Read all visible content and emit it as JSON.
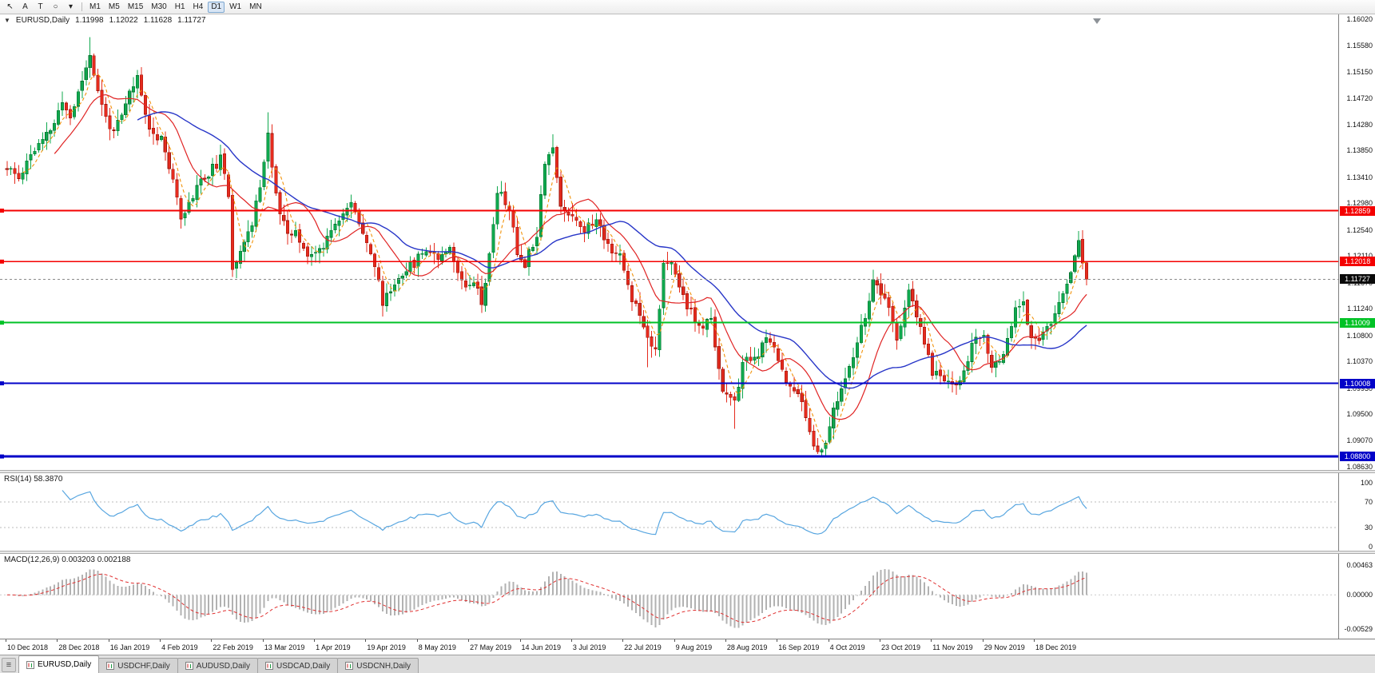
{
  "colors": {
    "bull_body": "#0fa84e",
    "bull_edge": "#05702e",
    "bear_body": "#e52b1e",
    "bear_edge": "#9c150c",
    "ma_fast": "#f2930a",
    "ma_mid": "#e02424",
    "ma_slow": "#2836c8",
    "hline_red": "#f40000",
    "hline_green": "#00c226",
    "hline_blue": "#0202c8",
    "current_line": "#8a8a8a",
    "current_box": "#0a0a0a",
    "rsi_line": "#58a6e0",
    "macd_hist": "#b2b2b2",
    "macd_signal": "#e03030"
  },
  "toolbar": {
    "tools": [
      {
        "name": "cursor-icon",
        "glyph": "↖"
      },
      {
        "name": "arrow-tool-a",
        "glyph": "A"
      },
      {
        "name": "text-tool-t",
        "glyph": "T"
      },
      {
        "name": "shapes-tool-icon",
        "glyph": "○"
      },
      {
        "name": "chevron-down-icon",
        "glyph": "▾"
      }
    ],
    "timeframes": [
      "M1",
      "M5",
      "M15",
      "M30",
      "H1",
      "H4",
      "D1",
      "W1",
      "MN"
    ],
    "active_timeframe": "D1"
  },
  "chart": {
    "collapse_glyph": "▼",
    "symbol_label": "EURUSD,Daily",
    "ohlc": {
      "open": "1.11998",
      "high": "1.12022",
      "low": "1.11628",
      "close": "1.11727"
    }
  },
  "price_axis": {
    "max": 1.1602,
    "min": 1.0863,
    "labels": [
      "1.16020",
      "1.15580",
      "1.15150",
      "1.14720",
      "1.14280",
      "1.13850",
      "1.13410",
      "1.12980",
      "1.12540",
      "1.12110",
      "1.11670",
      "1.11240",
      "1.10800",
      "1.10370",
      "1.09930",
      "1.09500",
      "1.09070",
      "1.08630"
    ]
  },
  "hlines": [
    {
      "value": 1.12859,
      "label": "1.12859",
      "color": "red",
      "weight": 1.6
    },
    {
      "value": 1.12018,
      "label": "1.12018",
      "color": "red",
      "weight": 1.6
    },
    {
      "value": 1.11009,
      "label": "1.11009",
      "color": "green",
      "weight": 2
    },
    {
      "value": 1.10008,
      "label": "1.10008",
      "color": "blue",
      "weight": 2.2
    },
    {
      "value": 1.088,
      "label": "1.08800",
      "color": "blue",
      "weight": 3
    }
  ],
  "current_price": {
    "value": 1.11727,
    "label": "1.11727"
  },
  "rsi": {
    "title": "RSI(14) 58.3870",
    "period": 14,
    "value": "58.3870",
    "axis_labels": [
      "100",
      "70",
      "30",
      "0"
    ],
    "levels": [
      70,
      30
    ]
  },
  "macd": {
    "title": "MACD(12,26,9) 0.003203 0.002188",
    "fast": 12,
    "slow": 26,
    "signal": 9,
    "values": [
      "0.003203",
      "0.002188"
    ],
    "axis_labels": [
      "0.00463",
      "0.00000",
      "-0.00529"
    ]
  },
  "date_axis": [
    "10 Dec 2018",
    "28 Dec 2018",
    "16 Jan 2019",
    "4 Feb 2019",
    "22 Feb 2019",
    "13 Mar 2019",
    "1 Apr 2019",
    "19 Apr 2019",
    "8 May 2019",
    "27 May 2019",
    "14 Jun 2019",
    "3 Jul 2019",
    "22 Jul 2019",
    "9 Aug 2019",
    "28 Aug 2019",
    "16 Sep 2019",
    "4 Oct 2019",
    "23 Oct 2019",
    "11 Nov 2019",
    "29 Nov 2019",
    "18 Dec 2019"
  ],
  "tab_bar": {
    "list_glyph": "≡",
    "tabs": [
      {
        "label": "EURUSD,Daily",
        "active": true
      },
      {
        "label": "USDCHF,Daily",
        "active": false
      },
      {
        "label": "AUDUSD,Daily",
        "active": false
      },
      {
        "label": "USDCAD,Daily",
        "active": false
      },
      {
        "label": "USDCNH,Daily",
        "active": false
      }
    ]
  },
  "chart_data": {
    "type": "candlestick",
    "symbol": "EURUSD",
    "timeframe": "Daily",
    "bars": 274,
    "seed": 11,
    "price_range": [
      1.0863,
      1.1602
    ],
    "macd_range": [
      -0.00529,
      0.00463
    ],
    "anchors": [
      [
        0,
        1.1355
      ],
      [
        3,
        1.134
      ],
      [
        6,
        1.138
      ],
      [
        9,
        1.14
      ],
      [
        12,
        1.143
      ],
      [
        14,
        1.1465
      ],
      [
        16,
        1.144
      ],
      [
        18,
        1.148
      ],
      [
        21,
        1.1545
      ],
      [
        23,
        1.148
      ],
      [
        25,
        1.144
      ],
      [
        27,
        1.1415
      ],
      [
        29,
        1.144
      ],
      [
        31,
        1.148
      ],
      [
        33,
        1.1505
      ],
      [
        35,
        1.1445
      ],
      [
        37,
        1.141
      ],
      [
        39,
        1.141
      ],
      [
        42,
        1.133
      ],
      [
        44,
        1.128
      ],
      [
        46,
        1.1295
      ],
      [
        48,
        1.133
      ],
      [
        50,
        1.134
      ],
      [
        54,
        1.137
      ],
      [
        56,
        1.131
      ],
      [
        57,
        1.1195
      ],
      [
        58,
        1.1205
      ],
      [
        60,
        1.124
      ],
      [
        62,
        1.126
      ],
      [
        64,
        1.133
      ],
      [
        66,
        1.1415
      ],
      [
        67,
        1.1355
      ],
      [
        69,
        1.128
      ],
      [
        71,
        1.1245
      ],
      [
        73,
        1.125
      ],
      [
        75,
        1.122
      ],
      [
        78,
        1.1215
      ],
      [
        80,
        1.123
      ],
      [
        83,
        1.127
      ],
      [
        87,
        1.1295
      ],
      [
        90,
        1.1255
      ],
      [
        93,
        1.1195
      ],
      [
        95,
        1.1135
      ],
      [
        97,
        1.1155
      ],
      [
        100,
        1.1185
      ],
      [
        103,
        1.12
      ],
      [
        106,
        1.1225
      ],
      [
        109,
        1.121
      ],
      [
        112,
        1.123
      ],
      [
        114,
        1.118
      ],
      [
        116,
        1.1165
      ],
      [
        118,
        1.1175
      ],
      [
        120,
        1.1135
      ],
      [
        122,
        1.121
      ],
      [
        124,
        1.132
      ],
      [
        127,
        1.129
      ],
      [
        129,
        1.1215
      ],
      [
        131,
        1.12
      ],
      [
        134,
        1.125
      ],
      [
        136,
        1.137
      ],
      [
        138,
        1.139
      ],
      [
        140,
        1.129
      ],
      [
        143,
        1.128
      ],
      [
        146,
        1.1255
      ],
      [
        149,
        1.127
      ],
      [
        152,
        1.123
      ],
      [
        155,
        1.121
      ],
      [
        158,
        1.114
      ],
      [
        160,
        1.112
      ],
      [
        162,
        1.1077
      ],
      [
        164,
        1.106
      ],
      [
        166,
        1.1195
      ],
      [
        168,
        1.1195
      ],
      [
        172,
        1.113
      ],
      [
        175,
        1.109
      ],
      [
        178,
        1.1105
      ],
      [
        181,
        1.099
      ],
      [
        184,
        1.0965
      ],
      [
        186,
        1.1035
      ],
      [
        189,
        1.104
      ],
      [
        192,
        1.107
      ],
      [
        194,
        1.1065
      ],
      [
        197,
        1.1
      ],
      [
        200,
        1.099
      ],
      [
        202,
        1.094
      ],
      [
        204,
        1.0905
      ],
      [
        206,
        1.0885
      ],
      [
        210,
        1.0975
      ],
      [
        214,
        1.104
      ],
      [
        219,
        1.1165
      ],
      [
        222,
        1.114
      ],
      [
        225,
        1.1075
      ],
      [
        228,
        1.115
      ],
      [
        231,
        1.109
      ],
      [
        234,
        1.102
      ],
      [
        238,
        1.1005
      ],
      [
        241,
        1.1
      ],
      [
        244,
        1.1065
      ],
      [
        247,
        1.108
      ],
      [
        249,
        1.102
      ],
      [
        252,
        1.1055
      ],
      [
        255,
        1.112
      ],
      [
        257,
        1.114
      ],
      [
        259,
        1.107
      ],
      [
        262,
        1.108
      ],
      [
        265,
        1.111
      ],
      [
        268,
        1.117
      ],
      [
        271,
        1.1235
      ],
      [
        272,
        1.12
      ],
      [
        273,
        1.11727
      ]
    ],
    "extremes": [
      {
        "i": 21,
        "h": 1.1572
      },
      {
        "i": 66,
        "h": 1.1448
      },
      {
        "i": 95,
        "l": 1.1111
      },
      {
        "i": 138,
        "h": 1.1412
      },
      {
        "i": 162,
        "l": 1.1027
      },
      {
        "i": 184,
        "l": 1.0926
      },
      {
        "i": 206,
        "l": 1.0879
      }
    ],
    "last_bar": {
      "open": 1.11998,
      "high": 1.12022,
      "low": 1.11628,
      "close": 1.11727
    },
    "ma": [
      {
        "period": 5,
        "color_key": "ma_fast",
        "width": 1.1,
        "dash": "4 3"
      },
      {
        "period": 13,
        "color_key": "ma_mid",
        "width": 1.2
      },
      {
        "period": 34,
        "color_key": "ma_slow",
        "width": 1.4
      }
    ]
  }
}
